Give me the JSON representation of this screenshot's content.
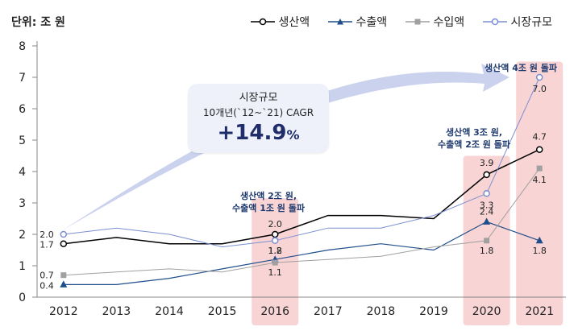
{
  "unit_label": "단위: 조 원",
  "legend": [
    {
      "name": "생산액",
      "marker": "circle-open",
      "color": "#000000"
    },
    {
      "name": "수출액",
      "marker": "triangle",
      "color": "#1f4e8c"
    },
    {
      "name": "수입액",
      "marker": "square",
      "color": "#a0a0a0"
    },
    {
      "name": "시장규모",
      "marker": "circle-open",
      "color": "#7a8fd1"
    }
  ],
  "callout": {
    "title": "시장규모",
    "subtitle": "10개년(`12~`21) CAGR",
    "value": "+14.9",
    "suffix": "%"
  },
  "annotations": {
    "a2016_line1": "생산액 2조 원,",
    "a2016_line2": "수출액 1조 원 돌파",
    "a2020_line1": "생산액 3조 원,",
    "a2020_line2": "수출액 2조 원 돌파",
    "a2021_line1": "생산액 4조 원 돌파"
  },
  "colors": {
    "highlight": "#f8d4d4",
    "arrow": "#c5cdeb",
    "grid": "#e0e0e0"
  },
  "chart_data": {
    "type": "line",
    "title": "",
    "xlabel": "",
    "ylabel": "단위: 조 원",
    "x": [
      "2012",
      "2013",
      "2014",
      "2015",
      "2016",
      "2017",
      "2018",
      "2019",
      "2020",
      "2021"
    ],
    "ylim": [
      0,
      8
    ],
    "yticks": [
      "0",
      "1",
      "2",
      "3",
      "4",
      "5",
      "6",
      "7",
      "8"
    ],
    "highlight_years": [
      "2016",
      "2020",
      "2021"
    ],
    "series": [
      {
        "name": "생산액",
        "color": "#000000",
        "values": [
          1.7,
          1.9,
          1.7,
          1.7,
          2.0,
          2.6,
          2.6,
          2.5,
          3.9,
          4.7
        ],
        "labels": [
          {
            "x": "2012",
            "text": "1.7"
          },
          {
            "x": "2016",
            "text": "2.0"
          },
          {
            "x": "2020",
            "text": "3.9"
          },
          {
            "x": "2021",
            "text": "4.7"
          }
        ]
      },
      {
        "name": "수출액",
        "color": "#1f4e8c",
        "values": [
          0.4,
          0.4,
          0.6,
          0.9,
          1.2,
          1.5,
          1.7,
          1.5,
          2.4,
          1.8
        ],
        "labels": [
          {
            "x": "2012",
            "text": "0.4"
          },
          {
            "x": "2016",
            "text": "1.2"
          },
          {
            "x": "2020",
            "text": "2.4"
          },
          {
            "x": "2021",
            "text": "1.8"
          }
        ]
      },
      {
        "name": "수입액",
        "color": "#a0a0a0",
        "values": [
          0.7,
          0.8,
          0.9,
          0.8,
          1.1,
          1.2,
          1.3,
          1.6,
          1.8,
          4.1
        ],
        "labels": [
          {
            "x": "2012",
            "text": "0.7"
          },
          {
            "x": "2016",
            "text": "1.1"
          },
          {
            "x": "2020",
            "text": "1.8"
          },
          {
            "x": "2021",
            "text": "4.1"
          }
        ]
      },
      {
        "name": "시장규모",
        "color": "#7a8fd1",
        "values": [
          2.0,
          2.2,
          2.0,
          1.6,
          1.8,
          2.2,
          2.2,
          2.6,
          3.3,
          7.0
        ],
        "labels": [
          {
            "x": "2012",
            "text": "2.0"
          },
          {
            "x": "2016",
            "text": "1.8"
          },
          {
            "x": "2020",
            "text": "3.3"
          },
          {
            "x": "2021",
            "text": "7.0"
          }
        ]
      }
    ]
  }
}
